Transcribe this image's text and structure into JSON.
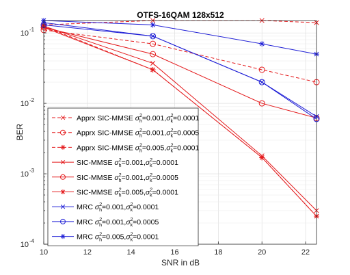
{
  "chart_data": {
    "type": "line",
    "title": "OTFS-16QAM 128x512",
    "xlabel": "SNR in dB",
    "ylabel": "BER",
    "xlim": [
      10,
      22.5
    ],
    "ylim": [
      0.0001,
      0.15
    ],
    "yscale": "log",
    "xticks": [
      "10",
      "12",
      "14",
      "16",
      "18",
      "20",
      "22"
    ],
    "yticks": [
      {
        "base": "10",
        "exp": "-4",
        "value": 0.0001
      },
      {
        "base": "10",
        "exp": "-3",
        "value": 0.001
      },
      {
        "base": "10",
        "exp": "-2",
        "value": 0.01
      },
      {
        "base": "10",
        "exp": "-1",
        "value": 0.1
      }
    ],
    "grid": true,
    "legend_position": "bottom-left",
    "x": [
      10,
      15,
      20,
      22.5
    ],
    "series": [
      {
        "name": "Apprx SIC-MMSE",
        "h": "0.001",
        "k": "0.0001",
        "color": "#e41a1c",
        "dash": "dashed",
        "marker": "x",
        "values": [
          0.13,
          0.15,
          0.15,
          0.14
        ]
      },
      {
        "name": "Apprx SIC-MMSE",
        "h": "0.001",
        "k": "0.0005",
        "color": "#e41a1c",
        "dash": "dashed",
        "marker": "o",
        "values": [
          0.11,
          0.07,
          0.03,
          0.02
        ]
      },
      {
        "name": "Apprx SIC-MMSE",
        "h": "0.005",
        "k": "0.0001",
        "color": "#e41a1c",
        "dash": "dashed",
        "marker": "*",
        "values": [
          0.125,
          0.03,
          0.0017,
          0.00025
        ]
      },
      {
        "name": "SIC-MMSE",
        "h": "0.001",
        "k": "0.0001",
        "color": "#e41a1c",
        "dash": "solid",
        "marker": "x",
        "values": [
          0.125,
          0.037,
          0.0018,
          0.0003
        ]
      },
      {
        "name": "SIC-MMSE",
        "h": "0.001",
        "k": "0.0005",
        "color": "#e41a1c",
        "dash": "solid",
        "marker": "o",
        "values": [
          0.12,
          0.05,
          0.01,
          0.0062
        ]
      },
      {
        "name": "SIC-MMSE",
        "h": "0.005",
        "k": "0.0001",
        "color": "#e41a1c",
        "dash": "solid",
        "marker": "*",
        "values": [
          0.12,
          0.03,
          0.0017,
          0.00025
        ]
      },
      {
        "name": "MRC",
        "h": "0.001",
        "k": "0.0001",
        "color": "#1f1fd6",
        "dash": "solid",
        "marker": "x",
        "values": [
          0.14,
          0.09,
          0.02,
          0.0065
        ]
      },
      {
        "name": "MRC",
        "h": "0.001",
        "k": "0.0005",
        "color": "#1f1fd6",
        "dash": "solid",
        "marker": "o",
        "values": [
          0.13,
          0.09,
          0.02,
          0.006
        ]
      },
      {
        "name": "MRC",
        "h": "0.005",
        "k": "0.0001",
        "color": "#1f1fd6",
        "dash": "solid",
        "marker": "*",
        "values": [
          0.15,
          0.13,
          0.07,
          0.05
        ]
      }
    ]
  }
}
